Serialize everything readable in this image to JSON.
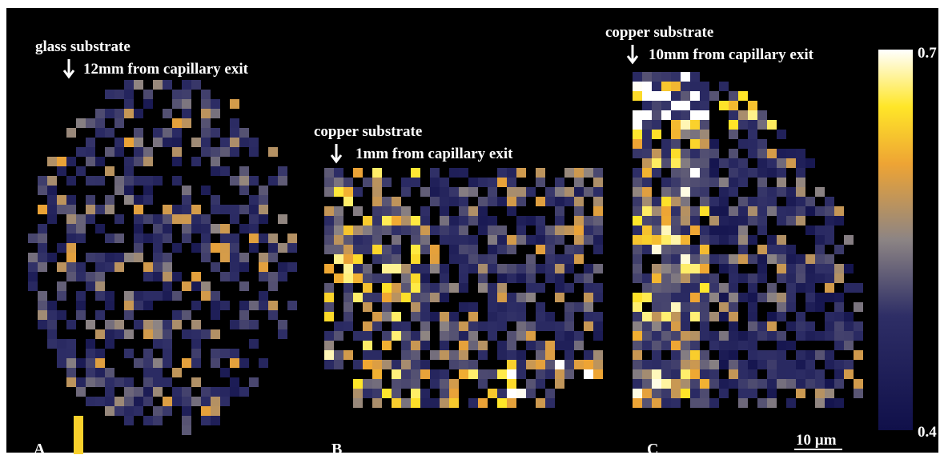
{
  "panels": [
    {
      "label": "A",
      "substrate": "glass substrate",
      "distance": "12mm from capillary exit"
    },
    {
      "label": "B",
      "substrate": "copper substrate",
      "distance": "1mm from capillary exit"
    },
    {
      "label": "C",
      "substrate": "copper substrate",
      "distance": "10mm from capillary exit"
    }
  ],
  "colorbar": {
    "max": 0.7,
    "min": 0.4
  },
  "scale_bar": "10 µm"
}
